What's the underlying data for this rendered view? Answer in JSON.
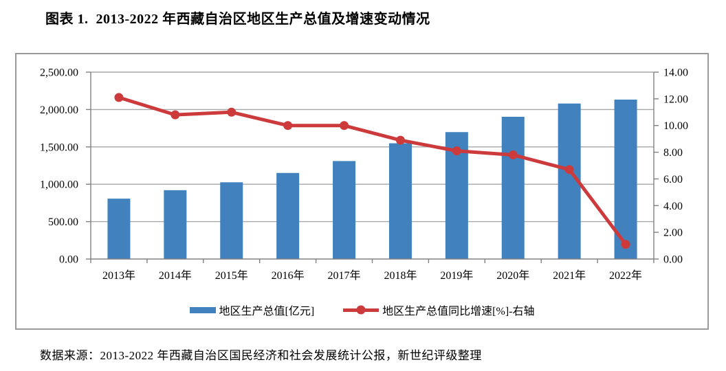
{
  "title": "图表 1.  2013-2022 年西藏自治区地区生产总值及增速变动情况",
  "source": "数据来源：2013-2022 年西藏自治区国民经济和社会发展统计公报，新世纪评级整理",
  "colors": {
    "bar": "#4182be",
    "line": "#cd3a3c",
    "grid": "#a6a6a6",
    "axis": "#808080",
    "border": "#9a9a9a",
    "text": "#000000"
  },
  "chart_data": {
    "type": "bar",
    "subtype": "combo-bar-line-dual-axis",
    "categories": [
      "2013年",
      "2014年",
      "2015年",
      "2016年",
      "2017年",
      "2018年",
      "2019年",
      "2020年",
      "2021年",
      "2022年"
    ],
    "series": [
      {
        "name": "地区生产总值[亿元]",
        "type": "bar",
        "axis": "left",
        "color": "#4182be",
        "values": [
          807.67,
          920.83,
          1026.39,
          1151.41,
          1310.63,
          1548.39,
          1697.82,
          1902.74,
          2080.17,
          2132.64
        ]
      },
      {
        "name": "地区生产总值同比增速[%]-右轴",
        "type": "line",
        "axis": "right",
        "color": "#cd3a3c",
        "values": [
          12.1,
          10.8,
          11.0,
          10.0,
          10.0,
          8.9,
          8.1,
          7.8,
          6.7,
          1.1
        ]
      }
    ],
    "left_axis": {
      "min": 0,
      "max": 2500,
      "step": 500,
      "tick_labels": [
        "2,500.00",
        "2,000.00",
        "1,500.00",
        "1,000.00",
        "500.00",
        "0.00"
      ]
    },
    "right_axis": {
      "min": 0,
      "max": 14,
      "step": 2,
      "tick_labels": [
        "14.00",
        "12.00",
        "10.00",
        "8.00",
        "6.00",
        "4.00",
        "2.00",
        "0.00"
      ]
    },
    "grid": true,
    "legend_position": "bottom"
  }
}
